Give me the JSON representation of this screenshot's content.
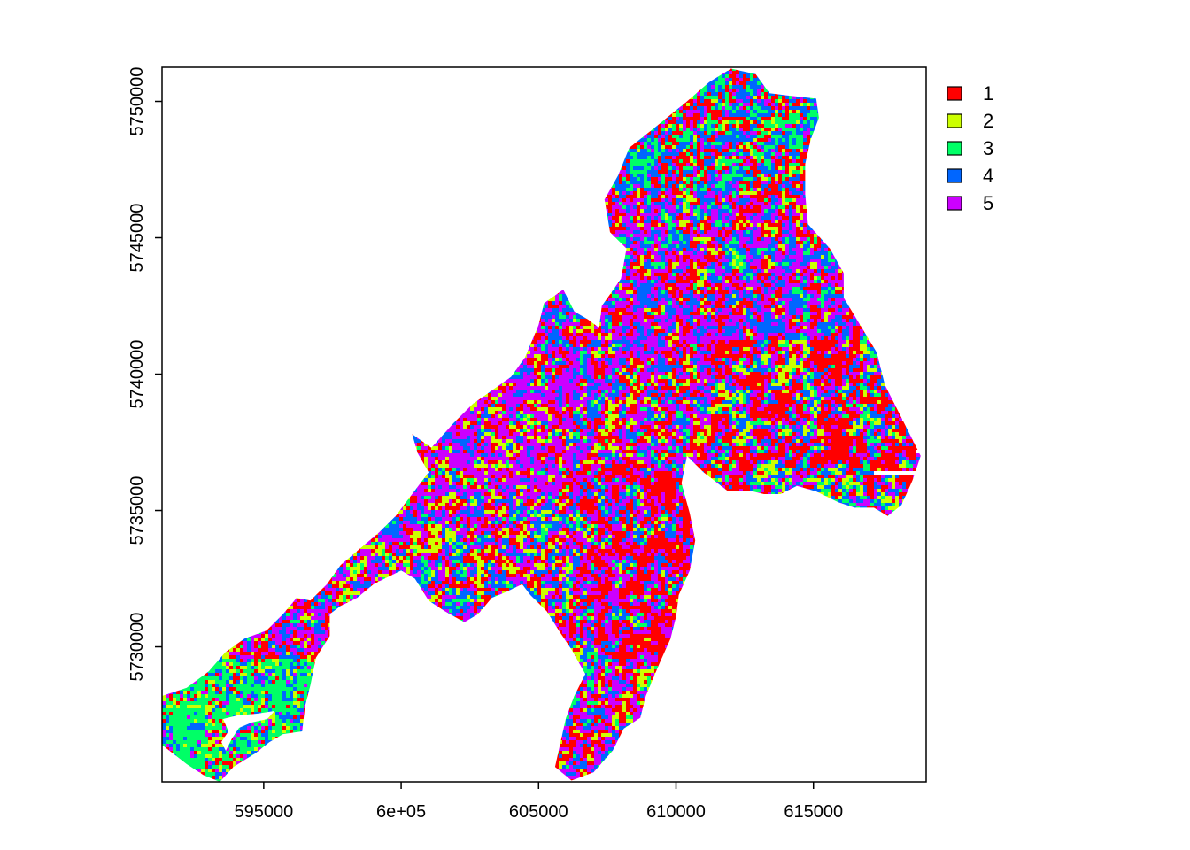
{
  "map": {
    "type": "raster-classification",
    "x_ticks": [
      {
        "value": 595000,
        "label": "595000"
      },
      {
        "value": 600000,
        "label": "6e+05"
      },
      {
        "value": 605000,
        "label": "605000"
      },
      {
        "value": 610000,
        "label": "610000"
      },
      {
        "value": 615000,
        "label": "615000"
      }
    ],
    "y_ticks": [
      {
        "value": 5730000,
        "label": "5730000"
      },
      {
        "value": 5735000,
        "label": "5735000"
      },
      {
        "value": 5740000,
        "label": "5740000"
      },
      {
        "value": 5745000,
        "label": "5745000"
      },
      {
        "value": 5750000,
        "label": "5750000"
      }
    ],
    "xlim": [
      591300,
      619100
    ],
    "ylim": [
      5725050,
      5751250
    ],
    "legend": {
      "placement": "right",
      "items": [
        {
          "label": "1",
          "color": "#ff0000"
        },
        {
          "label": "2",
          "color": "#ccff00"
        },
        {
          "label": "3",
          "color": "#00ff66"
        },
        {
          "label": "4",
          "color": "#0066ff"
        },
        {
          "label": "5",
          "color": "#cc00ff"
        }
      ]
    },
    "region_outline": [
      [
        591300,
        5728200
      ],
      [
        592200,
        5728500
      ],
      [
        593000,
        5729100
      ],
      [
        593600,
        5729800
      ],
      [
        594300,
        5730300
      ],
      [
        595100,
        5730600
      ],
      [
        595700,
        5731200
      ],
      [
        596200,
        5731800
      ],
      [
        596700,
        5731700
      ],
      [
        597300,
        5732300
      ],
      [
        597800,
        5733000
      ],
      [
        598500,
        5733600
      ],
      [
        599200,
        5734200
      ],
      [
        599800,
        5734800
      ],
      [
        600400,
        5735600
      ],
      [
        601000,
        5736400
      ],
      [
        600600,
        5737100
      ],
      [
        600400,
        5737800
      ],
      [
        601100,
        5737300
      ],
      [
        601900,
        5738200
      ],
      [
        602600,
        5738900
      ],
      [
        603300,
        5739400
      ],
      [
        604000,
        5739900
      ],
      [
        604500,
        5740600
      ],
      [
        605000,
        5741800
      ],
      [
        605200,
        5742600
      ],
      [
        605900,
        5743100
      ],
      [
        606300,
        5742300
      ],
      [
        606800,
        5742000
      ],
      [
        607200,
        5741700
      ],
      [
        607300,
        5742500
      ],
      [
        608000,
        5743500
      ],
      [
        608200,
        5744600
      ],
      [
        607600,
        5745200
      ],
      [
        607400,
        5746400
      ],
      [
        607900,
        5747300
      ],
      [
        608300,
        5748300
      ],
      [
        609300,
        5749100
      ],
      [
        610400,
        5750000
      ],
      [
        611200,
        5750700
      ],
      [
        612000,
        5751200
      ],
      [
        612900,
        5751000
      ],
      [
        613400,
        5750300
      ],
      [
        614200,
        5750200
      ],
      [
        615100,
        5750100
      ],
      [
        615200,
        5749400
      ],
      [
        614900,
        5748600
      ],
      [
        614700,
        5747700
      ],
      [
        614700,
        5746600
      ],
      [
        614800,
        5745500
      ],
      [
        615600,
        5744600
      ],
      [
        616100,
        5743700
      ],
      [
        616100,
        5742800
      ],
      [
        616700,
        5741800
      ],
      [
        617300,
        5740800
      ],
      [
        617600,
        5739600
      ],
      [
        618100,
        5738600
      ],
      [
        618500,
        5737800
      ],
      [
        618900,
        5737000
      ],
      [
        618600,
        5736100
      ],
      [
        618200,
        5735200
      ],
      [
        617700,
        5734800
      ],
      [
        617200,
        5735100
      ],
      [
        616500,
        5735100
      ],
      [
        615900,
        5735300
      ],
      [
        615100,
        5735700
      ],
      [
        614400,
        5735900
      ],
      [
        613800,
        5735600
      ],
      [
        613200,
        5735600
      ],
      [
        612800,
        5735700
      ],
      [
        611900,
        5735700
      ],
      [
        611000,
        5736400
      ],
      [
        610400,
        5737000
      ],
      [
        610200,
        5736000
      ],
      [
        610500,
        5734900
      ],
      [
        610700,
        5733900
      ],
      [
        610500,
        5732800
      ],
      [
        610100,
        5731900
      ],
      [
        610000,
        5731100
      ],
      [
        609800,
        5730300
      ],
      [
        609400,
        5729400
      ],
      [
        608900,
        5728200
      ],
      [
        608700,
        5727400
      ],
      [
        608100,
        5727000
      ],
      [
        607700,
        5726200
      ],
      [
        607000,
        5725400
      ],
      [
        606200,
        5725100
      ],
      [
        605600,
        5725600
      ],
      [
        605800,
        5726500
      ],
      [
        606000,
        5727400
      ],
      [
        606300,
        5728200
      ],
      [
        606700,
        5729000
      ],
      [
        606200,
        5729900
      ],
      [
        605800,
        5730500
      ],
      [
        605300,
        5731300
      ],
      [
        604700,
        5731900
      ],
      [
        604400,
        5732300
      ],
      [
        603800,
        5732000
      ],
      [
        603300,
        5731800
      ],
      [
        602800,
        5731200
      ],
      [
        602300,
        5730900
      ],
      [
        601600,
        5731300
      ],
      [
        601000,
        5731700
      ],
      [
        600500,
        5732500
      ],
      [
        600000,
        5732800
      ],
      [
        599400,
        5732500
      ],
      [
        599000,
        5732300
      ],
      [
        598400,
        5731800
      ],
      [
        597800,
        5731500
      ],
      [
        597400,
        5731200
      ],
      [
        597400,
        5730400
      ],
      [
        596900,
        5729600
      ],
      [
        596700,
        5728600
      ],
      [
        596500,
        5727800
      ],
      [
        596400,
        5726900
      ],
      [
        595700,
        5726800
      ],
      [
        595200,
        5726500
      ],
      [
        594700,
        5726100
      ],
      [
        593900,
        5725600
      ],
      [
        593400,
        5725050
      ],
      [
        592800,
        5725300
      ],
      [
        592200,
        5725700
      ],
      [
        591300,
        5726400
      ]
    ]
  }
}
